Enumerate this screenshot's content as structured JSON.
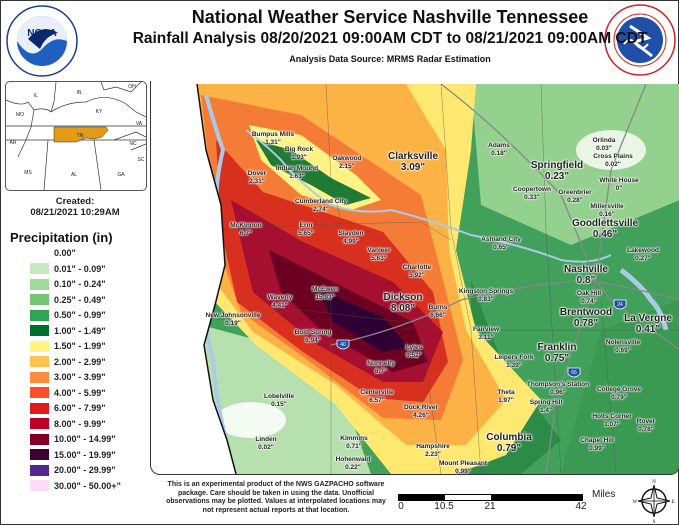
{
  "header": {
    "title": "National Weather Service Nashville Tennessee",
    "subtitle": "Rainfall Analysis 08/20/2021 09:00AM CDT to 08/21/2021 09:00AM CDT",
    "source": "Analysis Data Source: MRMS Radar Estimation"
  },
  "logos": {
    "noaa": "NOAA",
    "noaa_ring": "NATIONAL OCEANIC AND ATMOSPHERIC ADMINISTRATION · U.S. DEPARTMENT OF COMMERCE",
    "nws_ring": "NATIONAL WEATHER SERVICE · U.S. DEPARTMENT OF COMMERCE"
  },
  "inset": {
    "states": [
      "IL",
      "IN",
      "OH",
      "MO",
      "KY",
      "VA",
      "AR",
      "TN",
      "NC",
      "SC",
      "MS",
      "AL",
      "GA"
    ],
    "highlight_color": "#e39a14",
    "created_label": "Created:",
    "created_value": "08/21/2021 10:29AM"
  },
  "legend": {
    "title": "Precipitation (in)",
    "items": [
      {
        "label": "0.00\"",
        "color": "#ffffff"
      },
      {
        "label": "0.01\" - 0.09\"",
        "color": "#c7e9c0"
      },
      {
        "label": "0.10\" - 0.24\"",
        "color": "#a1d99b"
      },
      {
        "label": "0.25\" - 0.49\"",
        "color": "#74c476"
      },
      {
        "label": "0.50\" - 0.99\"",
        "color": "#31a354"
      },
      {
        "label": "1.00\" - 1.49\"",
        "color": "#006d2c"
      },
      {
        "label": "1.50\" - 1.99\"",
        "color": "#fff386"
      },
      {
        "label": "2.00\" - 2.99\"",
        "color": "#fec44f"
      },
      {
        "label": "3.00\" - 3.99\"",
        "color": "#fd8d3c"
      },
      {
        "label": "4.00\" - 5.99\"",
        "color": "#fc4e2a"
      },
      {
        "label": "6.00\" - 7.99\"",
        "color": "#e31a1c"
      },
      {
        "label": "8.00\" - 9.99\"",
        "color": "#bd0026"
      },
      {
        "label": "10.00\" - 14.99\"",
        "color": "#800026"
      },
      {
        "label": "15.00\" - 19.99\"",
        "color": "#3b0030"
      },
      {
        "label": "20.00\" - 29.99\"",
        "color": "#54278f"
      },
      {
        "label": "30.00\" - 50.00+\"",
        "color": "#fcdcf8"
      }
    ]
  },
  "cities": [
    {
      "name": "Bumpus Mills",
      "value": "1.31\""
    },
    {
      "name": "Big Rock",
      "value": "1.93\""
    },
    {
      "name": "Dover",
      "value": "2.31\""
    },
    {
      "name": "Indian Mound",
      "value": "1.63\""
    },
    {
      "name": "Oakwood",
      "value": "2.15\""
    },
    {
      "name": "Clarksville",
      "value": "3.09\""
    },
    {
      "name": "Cumberland City",
      "value": "2.74\""
    },
    {
      "name": "McKinnon",
      "value": "6.7\""
    },
    {
      "name": "Erin",
      "value": "5.65\""
    },
    {
      "name": "Slayden",
      "value": "4.99\""
    },
    {
      "name": "Vanleer",
      "value": "5.63\""
    },
    {
      "name": "Charlotte",
      "value": "5.92\""
    },
    {
      "name": "McEwen",
      "value": "15.93\""
    },
    {
      "name": "Waverly",
      "value": "4.41\""
    },
    {
      "name": "Dickson",
      "value": "8.08\""
    },
    {
      "name": "Burns",
      "value": "6.66\""
    },
    {
      "name": "New Johnsonville",
      "value": "0.19\""
    },
    {
      "name": "Bold Spring",
      "value": "6.94\""
    },
    {
      "name": "Lyles",
      "value": "9.52\""
    },
    {
      "name": "Nunnelly",
      "value": "8.7\""
    },
    {
      "name": "Centerville",
      "value": "6.57\""
    },
    {
      "name": "Lobelville",
      "value": "0.15\""
    },
    {
      "name": "Duck River",
      "value": "4.26\""
    },
    {
      "name": "Linden",
      "value": "0.02\""
    },
    {
      "name": "Kimmins",
      "value": "0.71\""
    },
    {
      "name": "Hohenwald",
      "value": "0.22\""
    },
    {
      "name": "Hampshire",
      "value": "2.23\""
    },
    {
      "name": "Mount Pleasant",
      "value": "0.99\""
    },
    {
      "name": "Columbia",
      "value": "0.79\""
    },
    {
      "name": "Adams",
      "value": "0.18\""
    },
    {
      "name": "Orlinda",
      "value": "0.03\""
    },
    {
      "name": "Cross Plains",
      "value": "0.02\""
    },
    {
      "name": "Springfield",
      "value": "0.23\""
    },
    {
      "name": "White House",
      "value": "0\""
    },
    {
      "name": "Coopertown",
      "value": "0.33\""
    },
    {
      "name": "Greenbrier",
      "value": "0.28\""
    },
    {
      "name": "Millersville",
      "value": "0.16\""
    },
    {
      "name": "Goodlettsville",
      "value": "0.46\""
    },
    {
      "name": "Ashland City",
      "value": "0.65\""
    },
    {
      "name": "Lakewood",
      "value": "0.27\""
    },
    {
      "name": "Nashville",
      "value": "0.8\""
    },
    {
      "name": "Kingston Springs",
      "value": "0.83\""
    },
    {
      "name": "Oak Hill",
      "value": "0.74\""
    },
    {
      "name": "Brentwood",
      "value": "0.78\""
    },
    {
      "name": "La Vergne",
      "value": "0.41\""
    },
    {
      "name": "Fairview",
      "value": "3.11\""
    },
    {
      "name": "Nolensville",
      "value": "0.69\""
    },
    {
      "name": "Franklin",
      "value": "0.75\""
    },
    {
      "name": "Leipers Fork",
      "value": "1.39\""
    },
    {
      "name": "Thompson's Station",
      "value": "0.96\""
    },
    {
      "name": "Theta",
      "value": "1.97\""
    },
    {
      "name": "Spring Hill",
      "value": "1.4\""
    },
    {
      "name": "College Grove",
      "value": "0.79\""
    },
    {
      "name": "Holts Corner",
      "value": "1.07\""
    },
    {
      "name": "Rover",
      "value": "0.78\""
    },
    {
      "name": "Chapel Hill",
      "value": "0.99\""
    }
  ],
  "interstates": [
    "24",
    "40",
    "65"
  ],
  "disclaimer": "This is an experimental product of the NWS GAZPACHO software package. Care should be taken in using the data. Unofficial observations may be plotted. Values at interpolated locations may not represent actual reports at that location.",
  "scale_bar": {
    "unit": "Miles",
    "ticks": [
      "0",
      "10.5",
      "21",
      "42"
    ]
  },
  "compass": {
    "n": "N",
    "e": "E",
    "s": "S",
    "w": "W"
  }
}
